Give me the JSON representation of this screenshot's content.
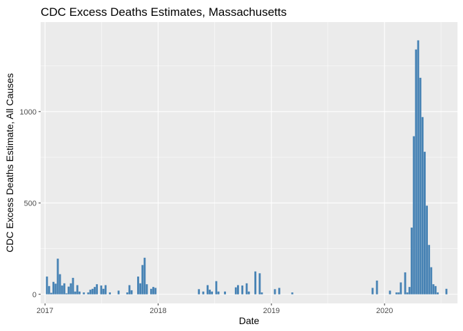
{
  "chart_data": {
    "type": "bar",
    "title": "CDC Excess Deaths Estimates, Massachusetts",
    "xlabel": "Date",
    "ylabel": "CDC Excess Deaths Estimate, All Causes",
    "grid": true,
    "ylim": [
      -50,
      1490
    ],
    "yticks": [
      0,
      500,
      1000
    ],
    "xticks": [
      "2017",
      "2018",
      "2019",
      "2020"
    ],
    "bar_color": "#4682B4",
    "panel_color": "#EBEBEB",
    "x_unit": "weeks since 2017-01-01",
    "x_domain": [
      -2,
      190
    ],
    "x_major_positions": [
      0,
      52.1,
      104.3,
      156.4
    ],
    "x_minor_positions": [
      26.1,
      78.2,
      130.3,
      182.4
    ],
    "bars": [
      [
        0.9,
        97
      ],
      [
        1.9,
        45
      ],
      [
        2.9,
        8
      ],
      [
        3.9,
        68
      ],
      [
        4.9,
        58
      ],
      [
        5.9,
        195
      ],
      [
        6.9,
        110
      ],
      [
        7.9,
        48
      ],
      [
        8.9,
        60
      ],
      [
        9.9,
        5
      ],
      [
        10.9,
        42
      ],
      [
        11.9,
        60
      ],
      [
        12.9,
        90
      ],
      [
        13.9,
        15
      ],
      [
        14.9,
        50
      ],
      [
        15.9,
        15
      ],
      [
        17.9,
        10
      ],
      [
        19.9,
        10
      ],
      [
        20.9,
        25
      ],
      [
        21.9,
        30
      ],
      [
        22.9,
        40
      ],
      [
        23.9,
        55
      ],
      [
        25.9,
        48
      ],
      [
        26.9,
        30
      ],
      [
        27.9,
        50
      ],
      [
        29.9,
        10
      ],
      [
        33.9,
        20
      ],
      [
        37.9,
        10
      ],
      [
        38.9,
        50
      ],
      [
        39.9,
        22
      ],
      [
        42.9,
        97
      ],
      [
        43.9,
        60
      ],
      [
        44.9,
        160
      ],
      [
        45.9,
        200
      ],
      [
        46.9,
        55
      ],
      [
        48.9,
        30
      ],
      [
        49.9,
        40
      ],
      [
        50.9,
        35
      ],
      [
        70.9,
        28
      ],
      [
        72.9,
        15
      ],
      [
        74.9,
        50
      ],
      [
        75.9,
        25
      ],
      [
        76.9,
        15
      ],
      [
        78.9,
        72
      ],
      [
        79.9,
        15
      ],
      [
        82.9,
        15
      ],
      [
        87.9,
        38
      ],
      [
        88.9,
        50
      ],
      [
        90.9,
        48
      ],
      [
        92.9,
        60
      ],
      [
        93.9,
        15
      ],
      [
        96.9,
        125
      ],
      [
        98.9,
        115
      ],
      [
        99.9,
        10
      ],
      [
        105.9,
        28
      ],
      [
        107.9,
        35
      ],
      [
        113.9,
        10
      ],
      [
        150.9,
        35
      ],
      [
        152.9,
        75
      ],
      [
        158.9,
        20
      ],
      [
        161.9,
        10
      ],
      [
        162.9,
        10
      ],
      [
        163.9,
        65
      ],
      [
        165.9,
        120
      ],
      [
        166.9,
        10
      ],
      [
        167.9,
        40
      ],
      [
        168.9,
        365
      ],
      [
        169.9,
        865
      ],
      [
        170.9,
        1340
      ],
      [
        171.9,
        1390
      ],
      [
        172.9,
        1185
      ],
      [
        173.9,
        970
      ],
      [
        174.9,
        780
      ],
      [
        175.9,
        485
      ],
      [
        176.9,
        270
      ],
      [
        177.9,
        148
      ],
      [
        178.9,
        55
      ],
      [
        179.9,
        45
      ],
      [
        180.9,
        10
      ],
      [
        184.9,
        30
      ]
    ]
  }
}
